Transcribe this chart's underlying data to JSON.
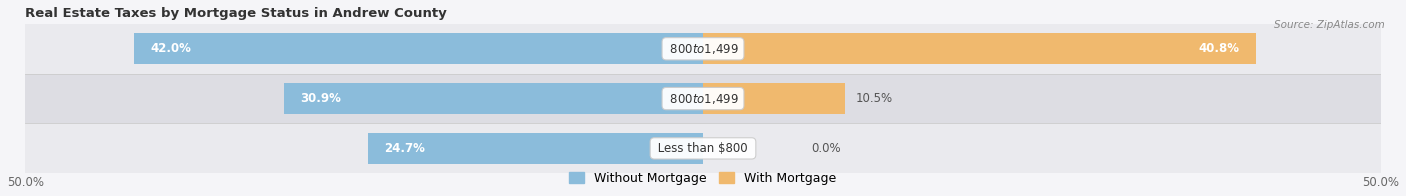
{
  "title": "Real Estate Taxes by Mortgage Status in Andrew County",
  "source": "Source: ZipAtlas.com",
  "rows": [
    {
      "label": "Less than $800",
      "without_mortgage": 24.7,
      "with_mortgage": 0.0
    },
    {
      "label": "$800 to $1,499",
      "without_mortgage": 30.9,
      "with_mortgage": 10.5
    },
    {
      "label": "$800 to $1,499",
      "without_mortgage": 42.0,
      "with_mortgage": 40.8
    }
  ],
  "xlim": [
    -50.0,
    50.0
  ],
  "xticklabels_left": "50.0%",
  "xticklabels_right": "50.0%",
  "color_without": "#8bbcdb",
  "color_with": "#f0b96e",
  "bg_row_light": "#eaeaee",
  "bg_row_dark": "#dddde3",
  "bar_height": 0.62,
  "title_fontsize": 9.5,
  "label_fontsize": 8.5,
  "tick_fontsize": 8.5,
  "legend_fontsize": 9,
  "fig_bg": "#f5f5f8"
}
